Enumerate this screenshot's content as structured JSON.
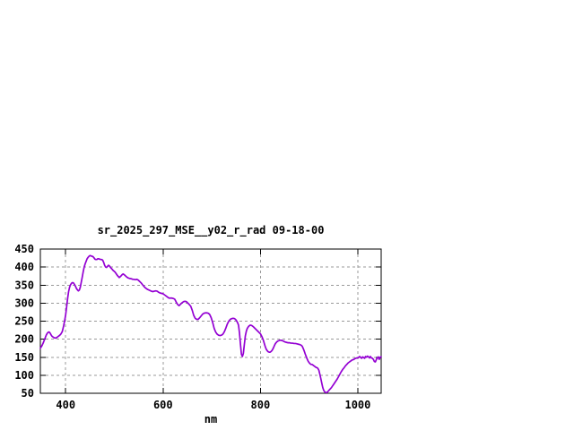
{
  "page": {
    "background": "#ffffff"
  },
  "chart_data": {
    "type": "line",
    "title": "sr_2025_297_MSE__y02_r_rad 09-18-00",
    "xlabel": "nm",
    "ylabel": "",
    "xlim": [
      348,
      1048
    ],
    "ylim": [
      50,
      450
    ],
    "x_ticks": [
      400,
      600,
      800,
      1000
    ],
    "y_ticks": [
      50,
      100,
      150,
      200,
      250,
      300,
      350,
      400,
      450
    ],
    "grid": true,
    "legend": false,
    "colors": {
      "line": "#9400d3",
      "grid": "#999999",
      "border": "#000000",
      "text": "#000000",
      "background": "#ffffff"
    },
    "series": [
      {
        "name": "sr_2025_297_MSE__y02_r_rad",
        "points": [
          [
            348,
            175
          ],
          [
            350,
            179
          ],
          [
            352,
            184
          ],
          [
            354,
            190
          ],
          [
            356,
            197
          ],
          [
            358,
            204
          ],
          [
            360,
            211
          ],
          [
            362,
            216
          ],
          [
            364,
            219
          ],
          [
            366,
            220
          ],
          [
            368,
            217
          ],
          [
            370,
            212
          ],
          [
            372,
            208
          ],
          [
            375,
            205
          ],
          [
            378,
            203
          ],
          [
            381,
            204
          ],
          [
            384,
            207
          ],
          [
            387,
            210
          ],
          [
            390,
            214
          ],
          [
            393,
            221
          ],
          [
            396,
            238
          ],
          [
            398,
            252
          ],
          [
            400,
            268
          ],
          [
            402,
            290
          ],
          [
            404,
            313
          ],
          [
            406,
            332
          ],
          [
            408,
            344
          ],
          [
            410,
            351
          ],
          [
            412,
            355
          ],
          [
            414,
            357
          ],
          [
            416,
            356
          ],
          [
            418,
            352
          ],
          [
            420,
            347
          ],
          [
            422,
            341
          ],
          [
            424,
            337
          ],
          [
            426,
            334
          ],
          [
            428,
            336
          ],
          [
            430,
            344
          ],
          [
            432,
            358
          ],
          [
            434,
            372
          ],
          [
            436,
            387
          ],
          [
            438,
            400
          ],
          [
            440,
            409
          ],
          [
            442,
            416
          ],
          [
            444,
            423
          ],
          [
            446,
            427
          ],
          [
            448,
            430
          ],
          [
            450,
            432
          ],
          [
            452,
            431
          ],
          [
            454,
            430
          ],
          [
            456,
            429
          ],
          [
            458,
            426
          ],
          [
            460,
            422
          ],
          [
            462,
            421
          ],
          [
            464,
            421
          ],
          [
            466,
            423
          ],
          [
            468,
            423
          ],
          [
            470,
            422
          ],
          [
            472,
            421
          ],
          [
            474,
            421
          ],
          [
            476,
            419
          ],
          [
            478,
            413
          ],
          [
            480,
            405
          ],
          [
            482,
            400
          ],
          [
            484,
            399
          ],
          [
            486,
            402
          ],
          [
            488,
            405
          ],
          [
            490,
            403
          ],
          [
            492,
            399
          ],
          [
            494,
            396
          ],
          [
            496,
            393
          ],
          [
            498,
            390
          ],
          [
            500,
            388
          ],
          [
            502,
            385
          ],
          [
            504,
            381
          ],
          [
            506,
            377
          ],
          [
            508,
            374
          ],
          [
            510,
            371
          ],
          [
            512,
            373
          ],
          [
            514,
            376
          ],
          [
            516,
            379
          ],
          [
            518,
            381
          ],
          [
            520,
            379
          ],
          [
            522,
            377
          ],
          [
            524,
            374
          ],
          [
            526,
            372
          ],
          [
            528,
            370
          ],
          [
            530,
            369
          ],
          [
            532,
            368
          ],
          [
            534,
            368
          ],
          [
            536,
            367
          ],
          [
            538,
            366
          ],
          [
            540,
            366
          ],
          [
            543,
            365
          ],
          [
            546,
            366
          ],
          [
            549,
            364
          ],
          [
            552,
            360
          ],
          [
            555,
            356
          ],
          [
            558,
            351
          ],
          [
            561,
            346
          ],
          [
            564,
            342
          ],
          [
            567,
            339
          ],
          [
            570,
            337
          ],
          [
            573,
            335
          ],
          [
            576,
            333
          ],
          [
            579,
            332
          ],
          [
            582,
            333
          ],
          [
            585,
            334
          ],
          [
            588,
            333
          ],
          [
            591,
            330
          ],
          [
            594,
            328
          ],
          [
            597,
            327
          ],
          [
            600,
            326
          ],
          [
            603,
            323
          ],
          [
            606,
            320
          ],
          [
            609,
            317
          ],
          [
            612,
            314
          ],
          [
            615,
            314
          ],
          [
            618,
            314
          ],
          [
            621,
            313
          ],
          [
            624,
            311
          ],
          [
            627,
            303
          ],
          [
            630,
            296
          ],
          [
            633,
            293
          ],
          [
            636,
            297
          ],
          [
            639,
            301
          ],
          [
            642,
            304
          ],
          [
            645,
            305
          ],
          [
            648,
            304
          ],
          [
            651,
            300
          ],
          [
            654,
            296
          ],
          [
            657,
            291
          ],
          [
            660,
            280
          ],
          [
            663,
            266
          ],
          [
            666,
            258
          ],
          [
            669,
            255
          ],
          [
            672,
            255
          ],
          [
            675,
            259
          ],
          [
            678,
            264
          ],
          [
            681,
            269
          ],
          [
            684,
            272
          ],
          [
            687,
            273
          ],
          [
            690,
            273
          ],
          [
            693,
            272
          ],
          [
            696,
            268
          ],
          [
            699,
            259
          ],
          [
            702,
            246
          ],
          [
            705,
            230
          ],
          [
            708,
            220
          ],
          [
            711,
            214
          ],
          [
            714,
            211
          ],
          [
            717,
            210
          ],
          [
            720,
            211
          ],
          [
            723,
            214
          ],
          [
            726,
            221
          ],
          [
            729,
            231
          ],
          [
            732,
            242
          ],
          [
            735,
            250
          ],
          [
            738,
            255
          ],
          [
            741,
            257
          ],
          [
            744,
            258
          ],
          [
            747,
            257
          ],
          [
            750,
            253
          ],
          [
            753,
            246
          ],
          [
            755,
            239
          ],
          [
            757,
            217
          ],
          [
            759,
            186
          ],
          [
            761,
            158
          ],
          [
            763,
            152
          ],
          [
            765,
            161
          ],
          [
            767,
            186
          ],
          [
            769,
            209
          ],
          [
            771,
            222
          ],
          [
            773,
            230
          ],
          [
            776,
            236
          ],
          [
            779,
            239
          ],
          [
            782,
            238
          ],
          [
            785,
            235
          ],
          [
            788,
            231
          ],
          [
            791,
            227
          ],
          [
            794,
            223
          ],
          [
            797,
            219
          ],
          [
            800,
            215
          ],
          [
            802,
            210
          ],
          [
            804,
            204
          ],
          [
            806,
            197
          ],
          [
            808,
            188
          ],
          [
            810,
            179
          ],
          [
            812,
            172
          ],
          [
            814,
            168
          ],
          [
            816,
            165
          ],
          [
            818,
            164
          ],
          [
            820,
            164
          ],
          [
            822,
            166
          ],
          [
            824,
            169
          ],
          [
            826,
            174
          ],
          [
            828,
            180
          ],
          [
            830,
            186
          ],
          [
            832,
            190
          ],
          [
            834,
            193
          ],
          [
            836,
            195
          ],
          [
            838,
            196
          ],
          [
            840,
            197
          ],
          [
            842,
            197
          ],
          [
            845,
            196
          ],
          [
            848,
            194
          ],
          [
            851,
            192
          ],
          [
            854,
            191
          ],
          [
            857,
            190
          ],
          [
            860,
            190
          ],
          [
            863,
            189
          ],
          [
            866,
            189
          ],
          [
            869,
            188
          ],
          [
            872,
            188
          ],
          [
            875,
            187
          ],
          [
            878,
            186
          ],
          [
            881,
            185
          ],
          [
            884,
            183
          ],
          [
            886,
            180
          ],
          [
            888,
            174
          ],
          [
            890,
            167
          ],
          [
            892,
            159
          ],
          [
            894,
            152
          ],
          [
            896,
            145
          ],
          [
            898,
            139
          ],
          [
            900,
            135
          ],
          [
            902,
            132
          ],
          [
            904,
            130
          ],
          [
            906,
            130
          ],
          [
            908,
            128
          ],
          [
            910,
            126
          ],
          [
            912,
            124
          ],
          [
            914,
            122
          ],
          [
            916,
            121
          ],
          [
            918,
            119
          ],
          [
            920,
            114
          ],
          [
            922,
            103
          ],
          [
            924,
            91
          ],
          [
            926,
            78
          ],
          [
            928,
            66
          ],
          [
            930,
            58
          ],
          [
            932,
            54
          ],
          [
            934,
            52
          ],
          [
            936,
            52
          ],
          [
            938,
            54
          ],
          [
            940,
            57
          ],
          [
            942,
            60
          ],
          [
            944,
            63
          ],
          [
            946,
            66
          ],
          [
            948,
            70
          ],
          [
            950,
            74
          ],
          [
            952,
            78
          ],
          [
            954,
            82
          ],
          [
            956,
            86
          ],
          [
            958,
            90
          ],
          [
            960,
            95
          ],
          [
            962,
            100
          ],
          [
            964,
            105
          ],
          [
            966,
            110
          ],
          [
            968,
            114
          ],
          [
            970,
            118
          ],
          [
            972,
            121
          ],
          [
            974,
            125
          ],
          [
            976,
            128
          ],
          [
            978,
            131
          ],
          [
            980,
            134
          ],
          [
            982,
            136
          ],
          [
            984,
            138
          ],
          [
            986,
            140
          ],
          [
            988,
            142
          ],
          [
            990,
            143
          ],
          [
            992,
            144
          ],
          [
            994,
            146
          ],
          [
            996,
            147
          ],
          [
            998,
            148
          ],
          [
            1000,
            148
          ],
          [
            1002,
            150
          ],
          [
            1004,
            152
          ],
          [
            1006,
            149
          ],
          [
            1008,
            147
          ],
          [
            1010,
            151
          ],
          [
            1012,
            149
          ],
          [
            1014,
            147
          ],
          [
            1016,
            152
          ],
          [
            1018,
            150
          ],
          [
            1020,
            153
          ],
          [
            1022,
            151
          ],
          [
            1024,
            148
          ],
          [
            1026,
            152
          ],
          [
            1028,
            148
          ],
          [
            1030,
            147
          ],
          [
            1032,
            144
          ],
          [
            1034,
            138
          ],
          [
            1036,
            137
          ],
          [
            1038,
            143
          ],
          [
            1040,
            148
          ],
          [
            1042,
            151
          ],
          [
            1044,
            144
          ],
          [
            1046,
            150
          ],
          [
            1048,
            151
          ]
        ]
      }
    ]
  }
}
